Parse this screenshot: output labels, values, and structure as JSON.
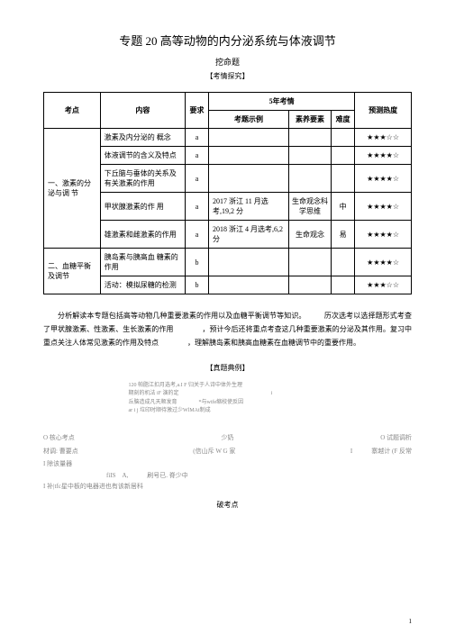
{
  "title": "专题 20 高等动物的内分泌系统与体液调节",
  "subtitle": "挖命题",
  "subtitle2": "【考情探究】",
  "table": {
    "headers": {
      "topic": "考点",
      "content": "内容",
      "requirement": "要求",
      "five_year": "5年考情",
      "example": "考题示例",
      "element": "素养要素",
      "difficulty": "难度",
      "predict": "预测热度"
    },
    "section1_title": "一、激素的分泌与调 节",
    "section2_title": "二、血糖平衡及调节",
    "rows": [
      {
        "content": "激素及内分泌的 概念",
        "req": "a",
        "example": "",
        "element": "",
        "diff": "",
        "stars": "★★★☆☆"
      },
      {
        "content": "体液调节的含义及特点",
        "req": "a",
        "example": "",
        "element": "",
        "diff": "",
        "stars": "★★★★☆"
      },
      {
        "content": "下丘脑与垂体的关系及有关激素的作用",
        "req": "a",
        "example": "",
        "element": "",
        "diff": "",
        "stars": "★★★★☆"
      },
      {
        "content": "甲状腺激素的作 用",
        "req": "a",
        "example": "2017 浙江 11 月选考,19,2 分",
        "element": "生命观念科学思维",
        "diff": "中",
        "stars": "★★★★☆"
      },
      {
        "content": "雄激素和雌激素的作用",
        "req": "a",
        "example": "2018 浙江 4 月选考,6,2分",
        "element": "生命观念",
        "diff": "易",
        "stars": "★★★★☆"
      },
      {
        "content": "胰岛素与胰高血 糖素的作用",
        "req": "b",
        "example": "",
        "element": "",
        "diff": "",
        "stars": "★★★★☆"
      },
      {
        "content": "活动：模拟尿糖的检测",
        "req": "b",
        "example": "",
        "element": "",
        "diff": "",
        "stars": "★★★☆☆"
      }
    ]
  },
  "paragraph": "分析解读本专题包括高等动物几种重要激素的作用以及血糖平衡调节等知识。　　　历次选考以选择题形式考查了甲状腺激素、性激素、生长激素的作用　　　　，预计今后还将重点考查这几种重要激素的分泌及其作用。复习中重点关注人体常见激素的作用及特点　　　　，理解胰岛素和胰高血糖素在血糖调节中的重要作用。",
  "section_title": "【真题典例】",
  "small_lines": {
    "l1": "120 帕脂江扣月选考,a.I F 归关于人诗中体外生理",
    "l2": "期刻的机法 iF 演的定　　　　　　　　　　　　　　　　　i",
    "l3": "丘脑造成凡天顺发育　　　　*与wtfe缩校使反因",
    "l4": "ar i j    垃印时顺待激过少WlMAt制成"
  },
  "bottom": {
    "r1c1": "O 核心考点",
    "r1c2": "少奶",
    "r1c3": "O 试题调析",
    "r2c1": "材调:  曹要点",
    "r2c2": "(信山斥 W G 家",
    "r2c3": "I　　　寨越计 (F 反常",
    "r3c1": "I 除该量器",
    "r4c1": "　　　　　　　　　　fiIS　A,　　　刷号已. 脊少中",
    "r5c1": "I 补|tfc星中板的电器进也有该新居科"
  },
  "breakpoint": "破考点",
  "page_num": "1"
}
